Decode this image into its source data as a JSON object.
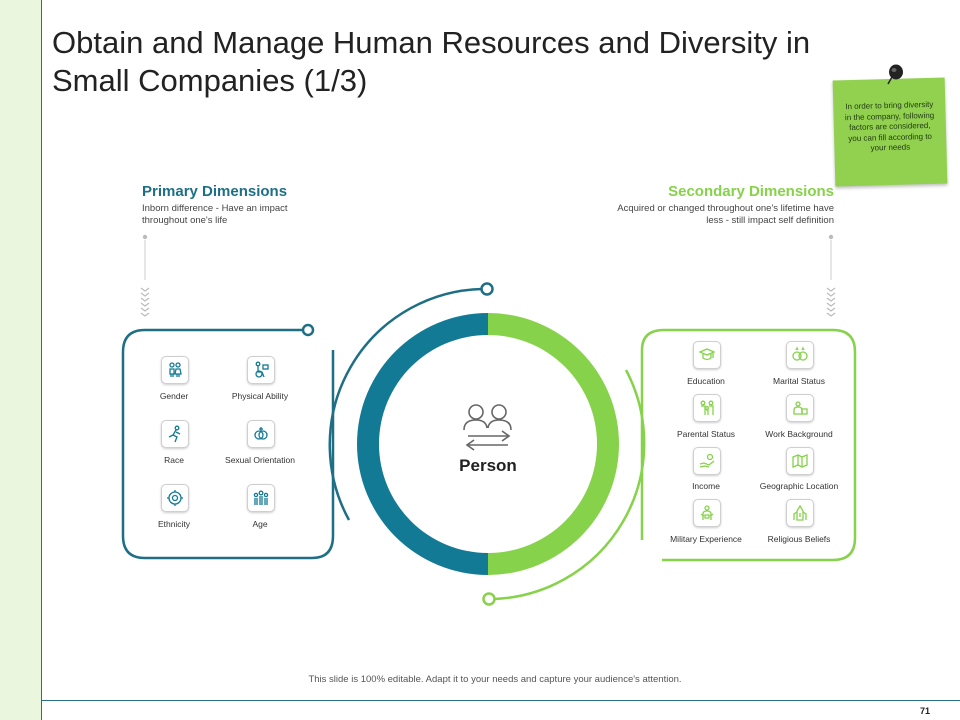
{
  "slide": {
    "title": "Obtain and Manage Human Resources and Diversity in Small Companies (1/3)",
    "footer": "This slide is 100% editable. Adapt it to your needs and capture your audience's attention.",
    "page_number": "71"
  },
  "note": {
    "text": "In order to bring diversity in the company, following factors are considered, you can fill according to your needs"
  },
  "primary": {
    "title": "Primary Dimensions",
    "description": "Inborn difference - Have an impact throughout one's life",
    "items": [
      "Gender",
      "Physical Ability",
      "Race",
      "Sexual Orientation",
      "Ethnicity",
      "Age"
    ]
  },
  "secondary": {
    "title": "Secondary Dimensions",
    "description": "Acquired or changed throughout one's lifetime have less - still impact self definition",
    "items": [
      "Education",
      "Marital Status",
      "Parental Status",
      "Work Background",
      "Income",
      "Geographic Location",
      "Military Experience",
      "Religious Beliefs"
    ]
  },
  "center": {
    "label": "Person"
  },
  "colors": {
    "teal": "#137a96",
    "green": "#86d24a",
    "dark_teal": "#1e6f86",
    "note_green": "#92d050"
  }
}
